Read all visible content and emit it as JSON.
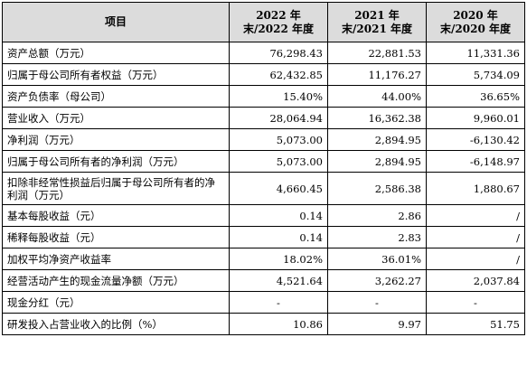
{
  "header": {
    "item": "项目",
    "years": [
      "2022 年末/2022 年度",
      "2021 年末/2021 年度",
      "2020 年末/2020 年度"
    ]
  },
  "rows": [
    {
      "label": "资产总额（万元）",
      "values": [
        "76,298.43",
        "22,881.53",
        "11,331.36"
      ]
    },
    {
      "label": "归属于母公司所有者权益（万元）",
      "values": [
        "62,432.85",
        "11,176.27",
        "5,734.09"
      ]
    },
    {
      "label": "资产负债率（母公司）",
      "values": [
        "15.40%",
        "44.00%",
        "36.65%"
      ]
    },
    {
      "label": "营业收入（万元）",
      "values": [
        "28,064.94",
        "16,362.38",
        "9,960.01"
      ]
    },
    {
      "label": "净利润（万元）",
      "values": [
        "5,073.00",
        "2,894.95",
        "-6,130.42"
      ]
    },
    {
      "label": "归属于母公司所有者的净利润（万元）",
      "values": [
        "5,073.00",
        "2,894.95",
        "-6,148.97"
      ]
    },
    {
      "label": "扣除非经常性损益后归属于母公司所有者的净利润（万元）",
      "values": [
        "4,660.45",
        "2,586.38",
        "1,880.67"
      ]
    },
    {
      "label": "基本每股收益（元）",
      "values": [
        "0.14",
        "2.86",
        "/"
      ]
    },
    {
      "label": "稀释每股收益（元）",
      "values": [
        "0.14",
        "2.83",
        "/"
      ]
    },
    {
      "label": "加权平均净资产收益率",
      "values": [
        "18.02%",
        "36.01%",
        "/"
      ]
    },
    {
      "label": "经营活动产生的现金流量净额（万元）",
      "values": [
        "4,521.64",
        "3,262.27",
        "2,037.84"
      ]
    },
    {
      "label": "现金分红（元）",
      "values": [
        "-",
        "-",
        "-"
      ]
    },
    {
      "label": "研发投入占营业收入的比例（%）",
      "values": [
        "10.86",
        "9.97",
        "51.75"
      ]
    }
  ]
}
